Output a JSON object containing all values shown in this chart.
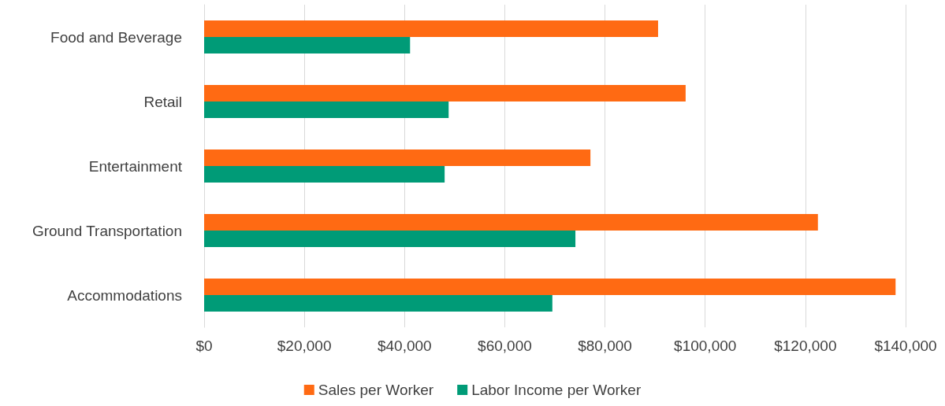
{
  "chart_data": {
    "type": "bar",
    "orientation": "horizontal",
    "categories": [
      "Food and Beverage",
      "Retail",
      "Entertainment",
      "Ground Transportation",
      "Accommodations"
    ],
    "series": [
      {
        "name": "Sales per Worker",
        "color": "#ff6a13",
        "values": [
          90600,
          96100,
          77100,
          122500,
          138000
        ]
      },
      {
        "name": "Labor Income per Worker",
        "color": "#009b77",
        "values": [
          41100,
          48800,
          48000,
          74100,
          69500
        ]
      }
    ],
    "xlim": [
      0,
      140000
    ],
    "xticks": [
      {
        "value": 0,
        "label": "$0"
      },
      {
        "value": 20000,
        "label": "$20,000"
      },
      {
        "value": 40000,
        "label": "$40,000"
      },
      {
        "value": 60000,
        "label": "$60,000"
      },
      {
        "value": 80000,
        "label": "$80,000"
      },
      {
        "value": 100000,
        "label": "$100,000"
      },
      {
        "value": 120000,
        "label": "$120,000"
      },
      {
        "value": 140000,
        "label": "$140,000"
      }
    ],
    "grid": "x",
    "legend": "bottom"
  }
}
